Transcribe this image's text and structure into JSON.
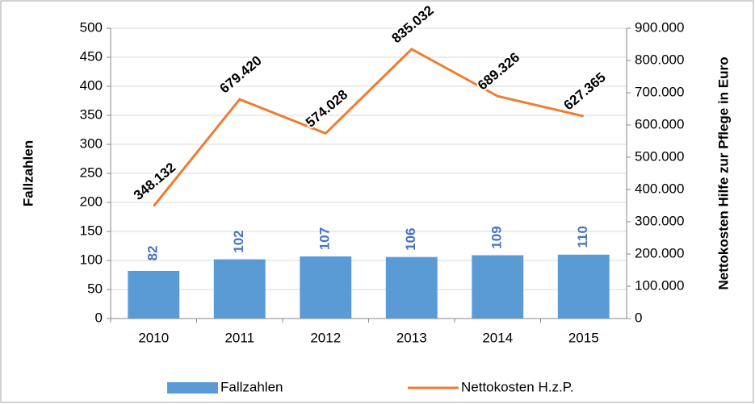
{
  "chart_data": {
    "type": "combo",
    "categories": [
      "2010",
      "2011",
      "2012",
      "2013",
      "2014",
      "2015"
    ],
    "series": [
      {
        "name": "Fallzahlen",
        "type": "bar",
        "color": "#5b9bd5",
        "label_color": "#4472c4",
        "values": [
          82,
          102,
          107,
          106,
          109,
          110
        ]
      },
      {
        "name": "Nettokosten H.z.P.",
        "type": "line",
        "axis": "y2",
        "color": "#ed7d31",
        "values": [
          348132,
          679420,
          574028,
          835032,
          689326,
          627365
        ],
        "value_labels": [
          "348.132",
          "679.420",
          "574.028",
          "835.032",
          "689.326",
          "627.365"
        ]
      }
    ],
    "ylabel": "Fallzahlen",
    "y2label": "Nettokosten Hilfe  zur Pflege in Euro",
    "ylim": [
      0,
      500
    ],
    "yticks": [
      0,
      50,
      100,
      150,
      200,
      250,
      300,
      350,
      400,
      450,
      500
    ],
    "y2lim": [
      0,
      900000
    ],
    "y2ticks": [
      0,
      {
        "value": 100000,
        "label": "100.000"
      },
      {
        "value": 200000,
        "label": "200.000"
      },
      {
        "value": 300000,
        "label": "300.000"
      },
      {
        "value": 400000,
        "label": "400.000"
      },
      {
        "value": 500000,
        "label": "500.000"
      },
      {
        "value": 600000,
        "label": "600.000"
      },
      {
        "value": 700000,
        "label": "700.000"
      },
      {
        "value": 800000,
        "label": "800.000"
      },
      {
        "value": 900000,
        "label": "900.000"
      }
    ],
    "grid": true,
    "legend": "bottom"
  }
}
